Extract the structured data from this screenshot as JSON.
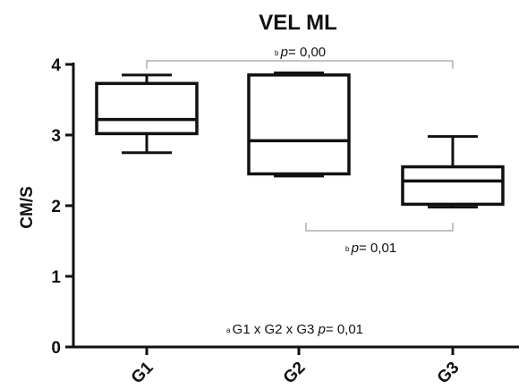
{
  "chart_data": {
    "type": "box",
    "title": "VEL ML",
    "ylabel": "CM/S",
    "xlabel": "",
    "ylim": [
      0,
      4
    ],
    "yticks": [
      0,
      1,
      2,
      3,
      4
    ],
    "categories": [
      "G1",
      "G2",
      "G3"
    ],
    "boxes": [
      {
        "category": "G1",
        "min": 2.75,
        "q1": 3.02,
        "median": 3.22,
        "q3": 3.73,
        "max": 3.85
      },
      {
        "category": "G2",
        "min": 2.42,
        "q1": 2.45,
        "median": 2.92,
        "q3": 3.85,
        "max": 3.88
      },
      {
        "category": "G3",
        "min": 1.98,
        "q1": 2.02,
        "median": 2.35,
        "q3": 2.55,
        "max": 2.98
      }
    ],
    "annotations": {
      "top_bracket": {
        "sup": "b",
        "italic": "p",
        "text": "= 0,00",
        "from": "G1",
        "to": "G3"
      },
      "lower_bracket": {
        "sup": "b",
        "italic": "p",
        "text": "= 0,01",
        "from": "G2",
        "to": "G3"
      },
      "overall": {
        "sup": "a",
        "text": "G1 x G2 x G3 ",
        "italic": "p",
        "value": "= 0,01"
      }
    },
    "grid": false,
    "legend": "none"
  }
}
